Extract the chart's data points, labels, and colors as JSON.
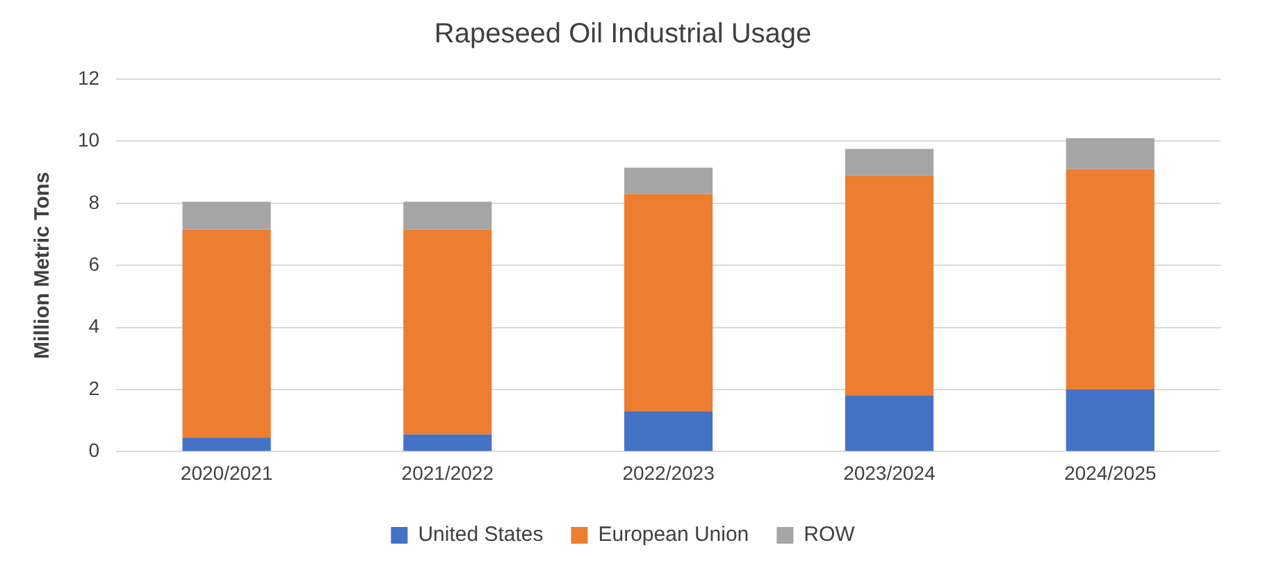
{
  "chart_data": {
    "type": "bar",
    "title": "Rapeseed Oil Industrial Usage",
    "ylabel": "Million Metric Tons",
    "categories": [
      "2020/2021",
      "2021/2022",
      "2022/2023",
      "2023/2024",
      "2024/2025"
    ],
    "series": [
      {
        "name": "United States",
        "color": "#4472c4",
        "values": [
          0.45,
          0.55,
          1.3,
          1.8,
          2.0
        ]
      },
      {
        "name": "European Union",
        "color": "#ed7d31",
        "values": [
          6.7,
          6.6,
          7.0,
          7.1,
          7.1
        ]
      },
      {
        "name": "ROW",
        "color": "#a5a5a5",
        "values": [
          0.9,
          0.9,
          0.85,
          0.85,
          1.0
        ]
      }
    ],
    "stacked": true,
    "ylim": [
      0,
      12
    ],
    "yticks": [
      0,
      2,
      4,
      6,
      8,
      10,
      12
    ],
    "grid": "y",
    "legend": "bottom"
  }
}
